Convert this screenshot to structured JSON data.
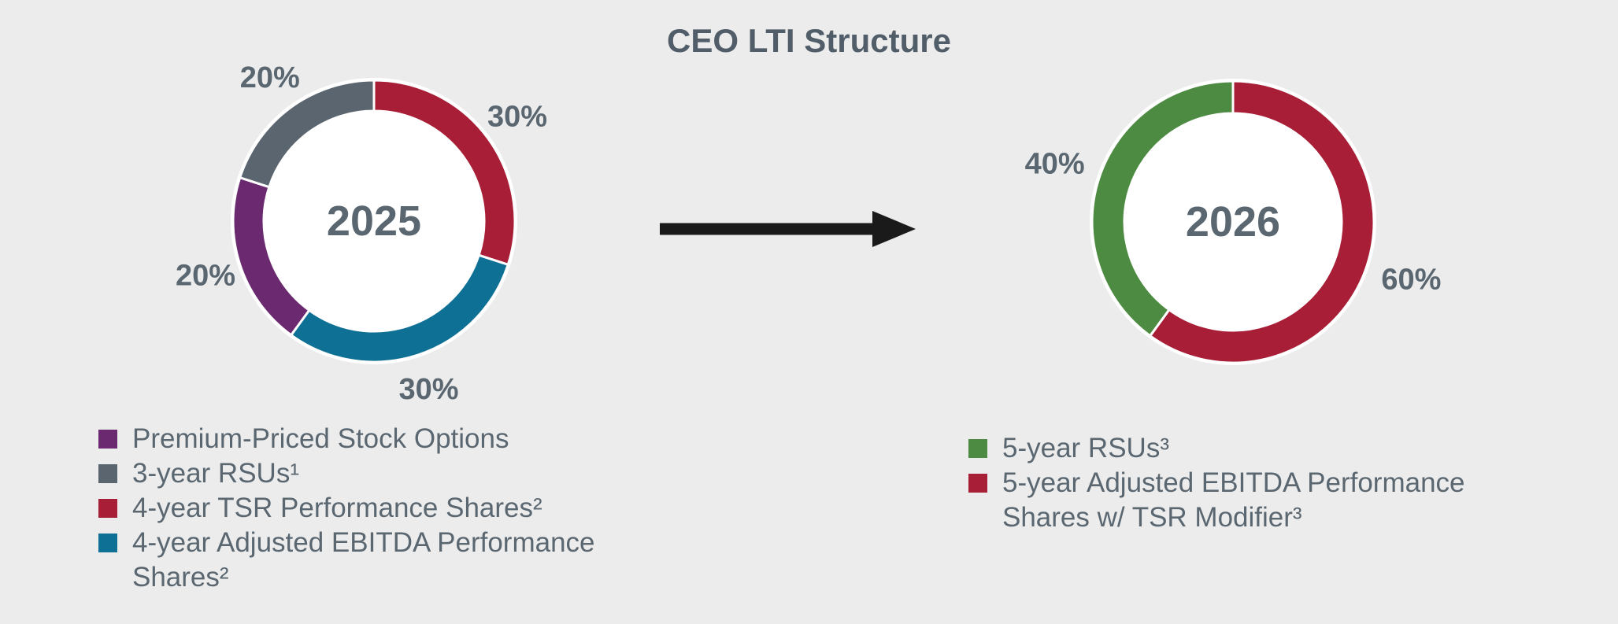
{
  "title": "CEO LTI Structure",
  "theme": {
    "background": "#ECECEC",
    "text_color": "#5A6771",
    "title_color": "#515D69",
    "arrow_color": "#1A1A1A",
    "donut_hole_color": "#FFFFFF",
    "palette": {
      "red": "#A81E36",
      "blue": "#0E7094",
      "purple": "#6B2A70",
      "gray": "#5A6570",
      "green": "#4E8B42"
    }
  },
  "chart_data": [
    {
      "type": "pie",
      "style": "donut",
      "center_label": "2025",
      "units": "%",
      "start_angle_deg": 0,
      "clockwise": true,
      "segments": [
        {
          "label": "4-year TSR Performance Shares²",
          "value": 30,
          "data_label": "30%",
          "color": "#A81E36"
        },
        {
          "label": "4-year Adjusted EBITDA Performance Shares²",
          "value": 30,
          "data_label": "30%",
          "color": "#0E7094"
        },
        {
          "label": "Premium-Priced Stock Options",
          "value": 20,
          "data_label": "20%",
          "color": "#6B2A70"
        },
        {
          "label": "3-year RSUs¹",
          "value": 20,
          "data_label": "20%",
          "color": "#5A6570"
        }
      ],
      "legend": [
        {
          "color": "#6B2A70",
          "label": "Premium-Priced Stock Options"
        },
        {
          "color": "#5A6570",
          "label": "3-year RSUs¹"
        },
        {
          "color": "#A81E36",
          "label": "4-year TSR Performance Shares²"
        },
        {
          "color": "#0E7094",
          "label": "4-year Adjusted EBITDA Performance\nShares²"
        }
      ]
    },
    {
      "type": "pie",
      "style": "donut",
      "center_label": "2026",
      "units": "%",
      "start_angle_deg": 0,
      "clockwise": true,
      "segments": [
        {
          "label": "5-year Adjusted EBITDA Performance Shares w/ TSR Modifier³",
          "value": 60,
          "data_label": "60%",
          "color": "#A81E36"
        },
        {
          "label": "5-year RSUs³",
          "value": 40,
          "data_label": "40%",
          "color": "#4E8B42"
        }
      ],
      "legend": [
        {
          "color": "#4E8B42",
          "label": "5-year RSUs³"
        },
        {
          "color": "#A81E36",
          "label": "5-year Adjusted EBITDA Performance\nShares w/ TSR Modifier³"
        }
      ]
    }
  ]
}
